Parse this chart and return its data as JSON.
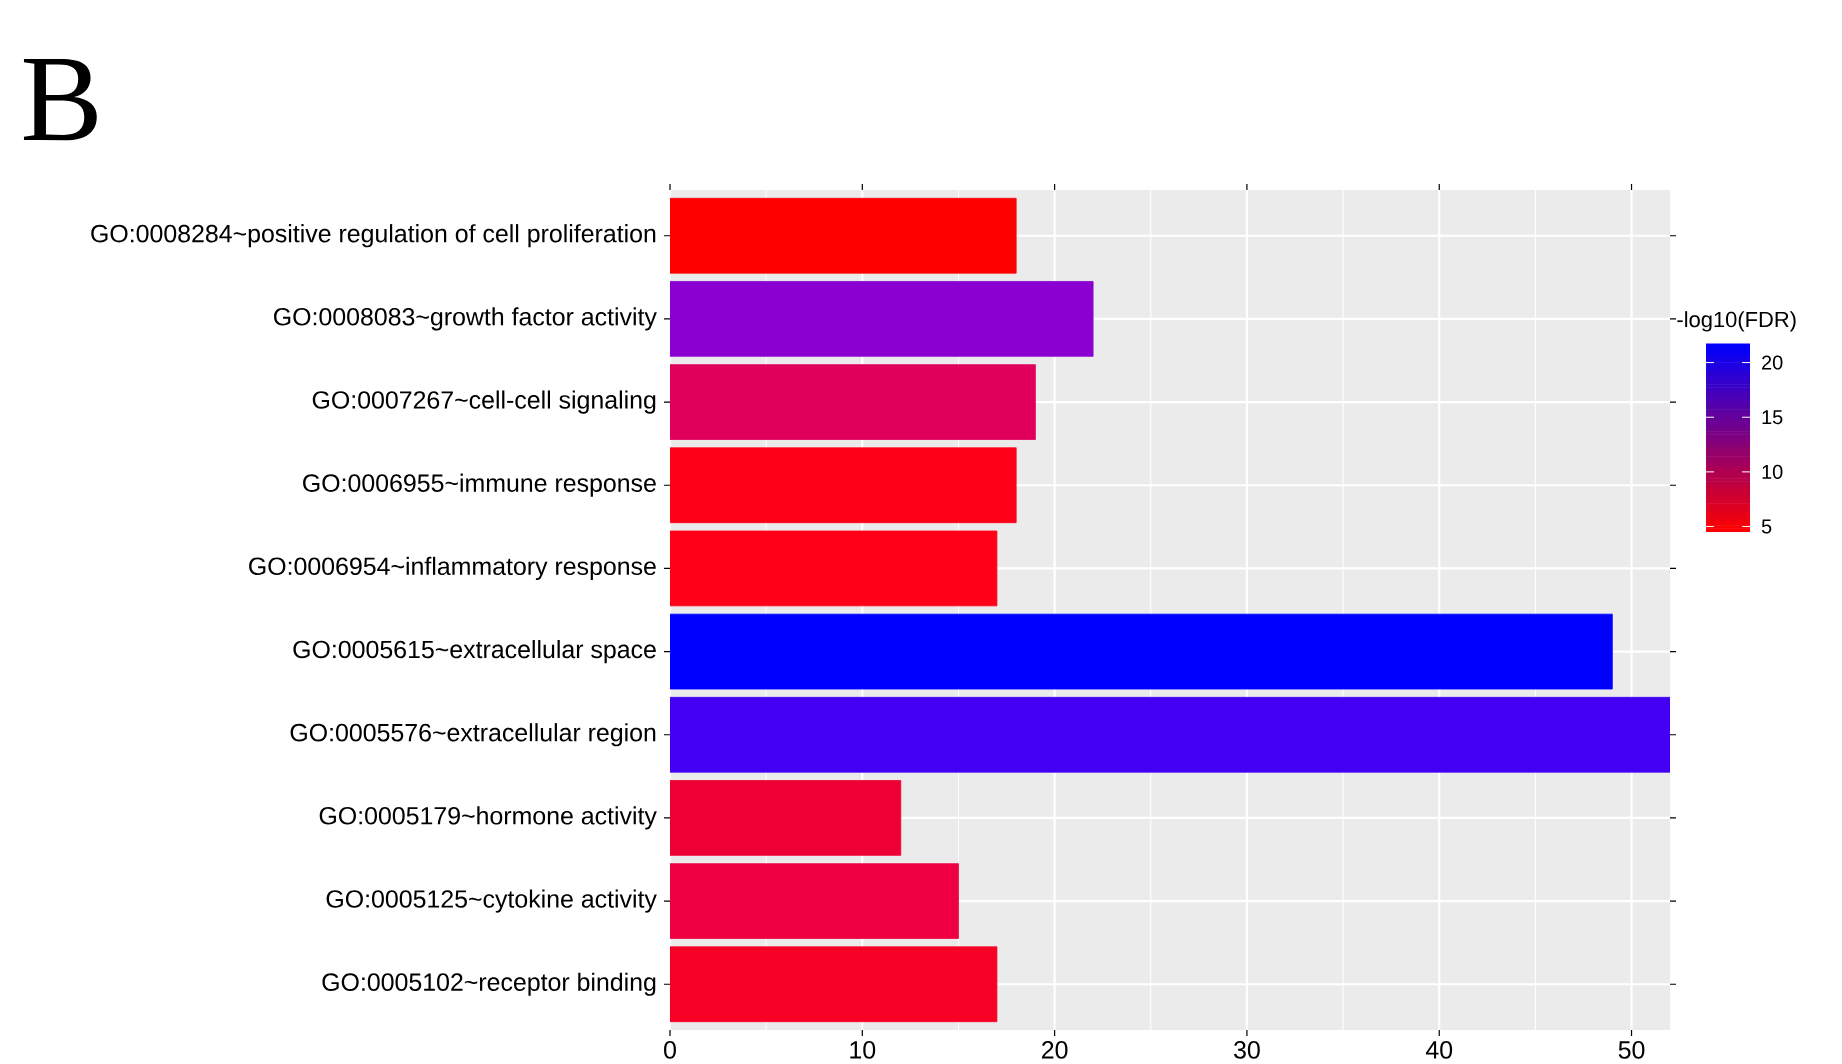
{
  "chart_data": {
    "type": "bar",
    "orientation": "horizontal",
    "title": "B",
    "categories": [
      "GO:0008284~positive regulation of cell proliferation",
      "GO:0008083~growth factor activity",
      "GO:0007267~cell-cell signaling",
      "GO:0006955~immune response",
      "GO:0006954~inflammatory response",
      "GO:0005615~extracellular space",
      "GO:0005576~extracellular region",
      "GO:0005179~hormone activity",
      "GO:0005125~cytokine activity",
      "GO:0005102~receptor binding"
    ],
    "values": [
      18,
      22,
      19,
      18,
      17,
      49,
      52,
      12,
      15,
      17
    ],
    "colors": [
      "#ff0000",
      "#8b00d0",
      "#e0005c",
      "#ff0019",
      "#ff0016",
      "#0000ff",
      "#4400f5",
      "#ef0034",
      "#ee0042",
      "#f60025"
    ],
    "xlim": [
      0,
      52
    ],
    "xticks": [
      0,
      10,
      20,
      30,
      40,
      50
    ],
    "grid": true,
    "clabel": "-log10(FDR)",
    "clim": [
      4.5,
      21.7
    ],
    "cticks": [
      5,
      10,
      15,
      20
    ]
  }
}
